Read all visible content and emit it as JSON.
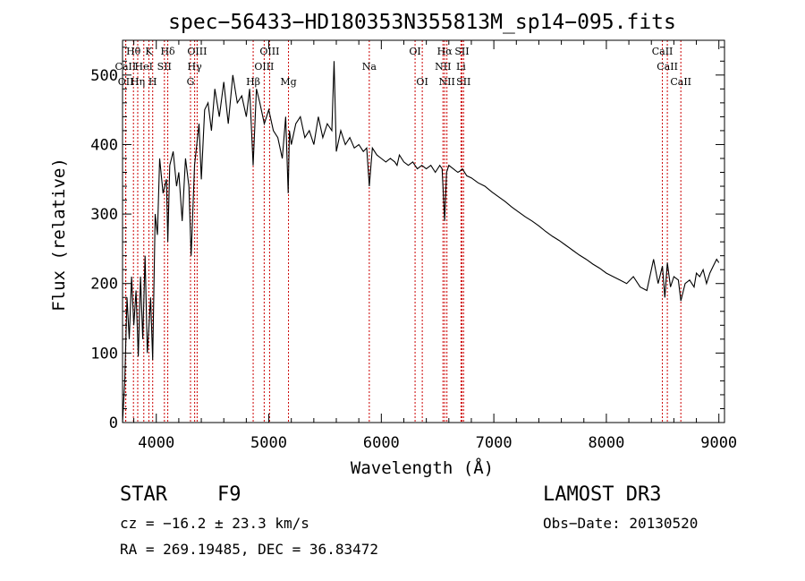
{
  "chart_data": {
    "type": "line",
    "title": "spec−56433−HD180353N355813M_sp14−095.fits",
    "xlabel": "Wavelength (Å)",
    "ylabel": "Flux (relative)",
    "xlim": [
      3700,
      9050
    ],
    "ylim": [
      0,
      550
    ],
    "xticks": [
      4000,
      5000,
      6000,
      7000,
      8000,
      9000
    ],
    "yticks": [
      0,
      100,
      200,
      300,
      400,
      500
    ],
    "grid": false,
    "series": [
      {
        "name": "flux",
        "x": [
          3700,
          3720,
          3740,
          3760,
          3780,
          3800,
          3820,
          3840,
          3860,
          3880,
          3900,
          3920,
          3935,
          3950,
          3968,
          3990,
          4010,
          4030,
          4060,
          4090,
          4102,
          4120,
          4150,
          4180,
          4200,
          4230,
          4260,
          4290,
          4310,
          4340,
          4360,
          4380,
          4400,
          4430,
          4460,
          4490,
          4520,
          4560,
          4600,
          4640,
          4680,
          4720,
          4760,
          4800,
          4830,
          4861,
          4890,
          4920,
          4960,
          5000,
          5040,
          5080,
          5120,
          5150,
          5172,
          5183,
          5200,
          5240,
          5280,
          5320,
          5360,
          5400,
          5440,
          5480,
          5520,
          5560,
          5580,
          5600,
          5640,
          5680,
          5720,
          5760,
          5800,
          5840,
          5870,
          5893,
          5920,
          5960,
          6000,
          6040,
          6080,
          6120,
          6140,
          6160,
          6200,
          6240,
          6280,
          6320,
          6360,
          6400,
          6440,
          6480,
          6520,
          6540,
          6563,
          6580,
          6600,
          6640,
          6680,
          6700,
          6720,
          6760,
          6800,
          6860,
          6920,
          6980,
          7040,
          7100,
          7160,
          7220,
          7280,
          7340,
          7400,
          7460,
          7520,
          7580,
          7640,
          7700,
          7760,
          7820,
          7880,
          7940,
          8000,
          8060,
          8120,
          8180,
          8240,
          8300,
          8360,
          8420,
          8460,
          8498,
          8520,
          8542,
          8570,
          8600,
          8640,
          8662,
          8700,
          8740,
          8780,
          8800,
          8830,
          8860,
          8890,
          8920,
          8950,
          8980,
          9000
        ],
        "values": [
          0,
          60,
          180,
          120,
          210,
          140,
          190,
          95,
          210,
          120,
          240,
          100,
          140,
          180,
          90,
          300,
          270,
          380,
          330,
          350,
          260,
          370,
          390,
          340,
          360,
          290,
          380,
          340,
          240,
          370,
          400,
          430,
          350,
          450,
          460,
          420,
          480,
          440,
          490,
          430,
          500,
          460,
          470,
          440,
          480,
          370,
          480,
          460,
          430,
          450,
          420,
          410,
          380,
          440,
          330,
          420,
          400,
          430,
          440,
          410,
          420,
          400,
          440,
          410,
          430,
          420,
          520,
          390,
          420,
          400,
          410,
          395,
          400,
          390,
          395,
          340,
          395,
          385,
          380,
          375,
          380,
          375,
          370,
          385,
          375,
          370,
          375,
          365,
          370,
          365,
          370,
          360,
          370,
          365,
          290,
          360,
          370,
          365,
          360,
          362,
          365,
          355,
          352,
          345,
          340,
          332,
          325,
          318,
          310,
          303,
          296,
          290,
          283,
          275,
          268,
          262,
          255,
          248,
          241,
          235,
          228,
          222,
          215,
          210,
          205,
          200,
          210,
          195,
          190,
          235,
          200,
          225,
          180,
          230,
          195,
          210,
          205,
          175,
          200,
          205,
          195,
          215,
          210,
          220,
          200,
          215,
          225,
          235,
          230
        ]
      }
    ],
    "lines": [
      {
        "label": "Hθ",
        "x": 3797,
        "row": 0
      },
      {
        "label": "K",
        "x": 3934,
        "row": 0
      },
      {
        "label": "Hδ",
        "x": 4102,
        "row": 0
      },
      {
        "label": "OIII",
        "x": 4363,
        "row": 0
      },
      {
        "label": "OIII",
        "x": 5007,
        "row": 0
      },
      {
        "label": "OI",
        "x": 6300,
        "row": 0
      },
      {
        "label": "Hα",
        "x": 6563,
        "row": 0
      },
      {
        "label": "SII",
        "x": 6717,
        "row": 0
      },
      {
        "label": "CaII",
        "x": 8498,
        "row": 0
      },
      {
        "label": "CaII",
        "x": 3727,
        "row": 1
      },
      {
        "label": "HeI",
        "x": 3889,
        "row": 1
      },
      {
        "label": "SII",
        "x": 4072,
        "row": 1
      },
      {
        "label": "Hγ",
        "x": 4341,
        "row": 1
      },
      {
        "label": "OIII",
        "x": 4959,
        "row": 1
      },
      {
        "label": "Na",
        "x": 5893,
        "row": 1
      },
      {
        "label": "NII",
        "x": 6548,
        "row": 1
      },
      {
        "label": "Li",
        "x": 6708,
        "row": 1
      },
      {
        "label": "CaII",
        "x": 8542,
        "row": 1
      },
      {
        "label": "OII",
        "x": 3729,
        "row": 2
      },
      {
        "label": "Hη",
        "x": 3835,
        "row": 2
      },
      {
        "label": "H",
        "x": 3968,
        "row": 2
      },
      {
        "label": "G",
        "x": 4304,
        "row": 2
      },
      {
        "label": "Hβ",
        "x": 4861,
        "row": 2
      },
      {
        "label": "Mg",
        "x": 5175,
        "row": 2
      },
      {
        "label": "OI",
        "x": 6364,
        "row": 2
      },
      {
        "label": "NII",
        "x": 6583,
        "row": 2
      },
      {
        "label": "SII",
        "x": 6731,
        "row": 2
      },
      {
        "label": "CaII",
        "x": 8662,
        "row": 2
      }
    ]
  },
  "info": {
    "class": "STAR",
    "subclass": "F9",
    "cz": "cz = −16.2 ± 23.3 km/s",
    "radec": "RA = 269.19485, DEC =  36.83472",
    "survey": "LAMOST DR3",
    "obsdate": "Obs−Date: 20130520"
  },
  "colors": {
    "line": "#000000",
    "marker": "#cc0000"
  }
}
